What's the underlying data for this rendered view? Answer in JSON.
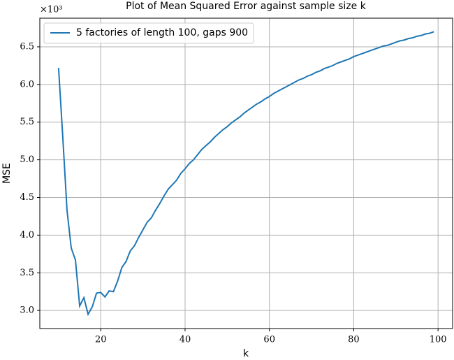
{
  "chart_data": {
    "type": "line",
    "title": "Plot of Mean Squared Error against sample size k",
    "x_label": "k",
    "y_label": "MSE",
    "y_offset_label": "×10³",
    "x": [
      10,
      11,
      12,
      13,
      14,
      15,
      16,
      17,
      18,
      19,
      20,
      21,
      22,
      23,
      24,
      25,
      26,
      27,
      28,
      29,
      30,
      31,
      32,
      33,
      34,
      35,
      36,
      37,
      38,
      39,
      40,
      41,
      42,
      43,
      44,
      45,
      46,
      47,
      48,
      49,
      50,
      51,
      52,
      53,
      54,
      55,
      56,
      57,
      58,
      59,
      60,
      61,
      62,
      63,
      64,
      65,
      66,
      67,
      68,
      69,
      70,
      71,
      72,
      73,
      74,
      75,
      76,
      77,
      78,
      79,
      80,
      81,
      82,
      83,
      84,
      85,
      86,
      87,
      88,
      89,
      90,
      91,
      92,
      93,
      94,
      95,
      96,
      97,
      98,
      99
    ],
    "series": [
      {
        "name": "5 factories of length 100, gaps 900",
        "color": "#1f77b4",
        "values": [
          6.22,
          5.3,
          4.33,
          3.83,
          3.67,
          3.06,
          3.17,
          2.95,
          3.05,
          3.23,
          3.24,
          3.18,
          3.26,
          3.25,
          3.39,
          3.57,
          3.65,
          3.79,
          3.86,
          3.97,
          4.07,
          4.17,
          4.23,
          4.33,
          4.42,
          4.52,
          4.61,
          4.67,
          4.73,
          4.82,
          4.88,
          4.95,
          5.0,
          5.07,
          5.14,
          5.19,
          5.24,
          5.3,
          5.35,
          5.4,
          5.44,
          5.49,
          5.53,
          5.57,
          5.62,
          5.66,
          5.7,
          5.74,
          5.77,
          5.81,
          5.84,
          5.88,
          5.91,
          5.94,
          5.97,
          6.0,
          6.03,
          6.06,
          6.08,
          6.11,
          6.13,
          6.16,
          6.18,
          6.21,
          6.23,
          6.25,
          6.28,
          6.3,
          6.32,
          6.34,
          6.37,
          6.39,
          6.41,
          6.43,
          6.45,
          6.47,
          6.49,
          6.51,
          6.52,
          6.54,
          6.56,
          6.58,
          6.59,
          6.61,
          6.62,
          6.64,
          6.65,
          6.67,
          6.68,
          6.7
        ]
      }
    ],
    "xlim": [
      5.55,
      103.45
    ],
    "ylim": [
      2.76,
      6.88
    ],
    "xticks": [
      20,
      40,
      60,
      80,
      100
    ],
    "yticks": [
      {
        "value": 3,
        "label": "3.0"
      },
      3.5,
      {
        "value": 4,
        "label": "4.0"
      },
      4.5,
      {
        "value": 5,
        "label": "5.0"
      },
      5.5,
      {
        "value": 6,
        "label": "6.0"
      },
      6.5
    ],
    "grid": true,
    "legend": "upper left"
  }
}
